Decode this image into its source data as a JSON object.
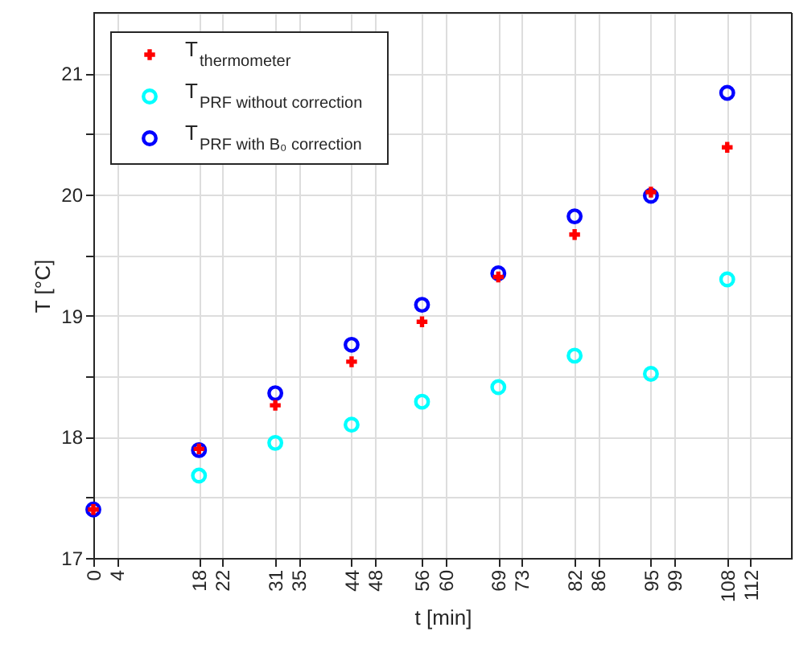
{
  "chart_data": {
    "type": "scatter",
    "xlabel": "t [min]",
    "ylabel": "T [°C]",
    "x": [
      0,
      18,
      31,
      44,
      56,
      69,
      82,
      95,
      108
    ],
    "series": [
      {
        "name": "T$_{thermometer}$",
        "color": "#ff0000",
        "marker": "cross",
        "values": [
          17.4,
          17.9,
          18.26,
          18.62,
          18.95,
          19.32,
          19.67,
          20.02,
          20.39
        ]
      },
      {
        "name": "T$_{PRF without correction}$",
        "color": "#00ffff",
        "marker": "circle",
        "values": [
          null,
          17.68,
          17.95,
          18.1,
          18.29,
          18.41,
          18.67,
          18.52,
          19.3
        ]
      },
      {
        "name": "T$_{PRF with B₀ correction}$",
        "color": "#0000ff",
        "marker": "circle",
        "values": [
          17.4,
          17.89,
          18.36,
          18.76,
          19.09,
          19.35,
          19.82,
          19.99,
          20.84
        ]
      }
    ],
    "xlim": [
      0,
      119
    ],
    "xticks": [
      0,
      4,
      18,
      22,
      31,
      35,
      44,
      48,
      56,
      60,
      69,
      73,
      82,
      86,
      95,
      99,
      108,
      112
    ],
    "ylim": [
      17,
      21.5
    ],
    "yticks": [
      17,
      {
        "value": 17.5,
        "label": null
      },
      18,
      {
        "value": 18.5,
        "label": null
      },
      19,
      {
        "value": 19.5,
        "label": null
      },
      20,
      {
        "value": 20.5,
        "label": null
      },
      21
    ],
    "grid": true,
    "legend": "top left"
  }
}
